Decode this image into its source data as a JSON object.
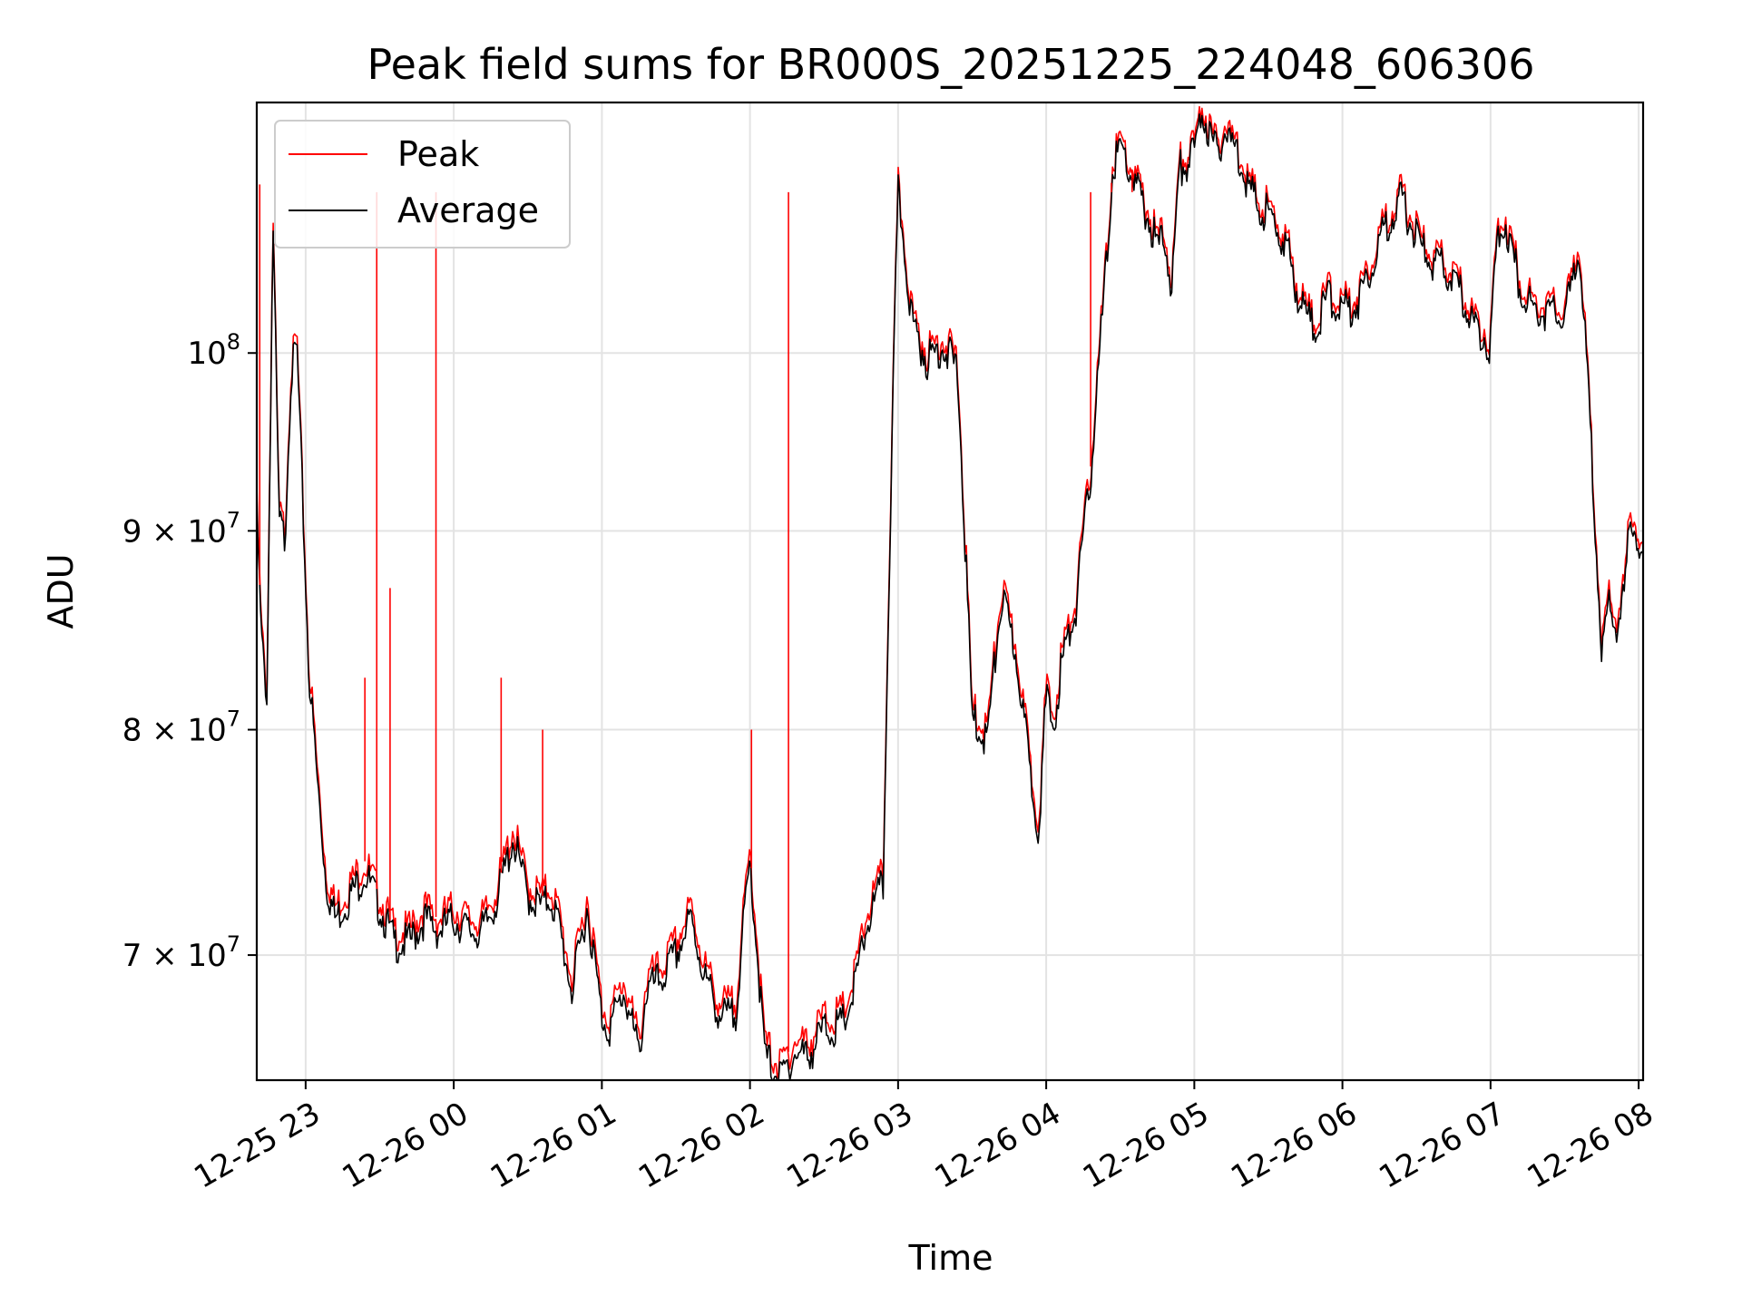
{
  "chart_data": {
    "type": "line",
    "title": "Peak field sums for BR000S_20251225_224048_606306",
    "xlabel": "Time",
    "ylabel": "ADU",
    "yscale": "log",
    "ylim": [
      65000000,
      116000000
    ],
    "x_range_hours": [
      -1.33,
      8.03
    ],
    "grid": true,
    "legend_position": "upper-left",
    "x_ticks": [
      {
        "hour": -1,
        "label": "12-25 23"
      },
      {
        "hour": 0,
        "label": "12-26 00"
      },
      {
        "hour": 1,
        "label": "12-26 01"
      },
      {
        "hour": 2,
        "label": "12-26 02"
      },
      {
        "hour": 3,
        "label": "12-26 03"
      },
      {
        "hour": 4,
        "label": "12-26 04"
      },
      {
        "hour": 5,
        "label": "12-26 05"
      },
      {
        "hour": 6,
        "label": "12-26 06"
      },
      {
        "hour": 7,
        "label": "12-26 07"
      },
      {
        "hour": 8,
        "label": "12-26 08"
      }
    ],
    "y_ticks": [
      {
        "value": 70000000,
        "mantissa": "7",
        "base": "10",
        "exp": "7"
      },
      {
        "value": 80000000,
        "mantissa": "8",
        "base": "10",
        "exp": "7"
      },
      {
        "value": 90000000,
        "mantissa": "9",
        "base": "10",
        "exp": "7"
      },
      {
        "value": 100000000,
        "mantissa": "",
        "base": "10",
        "exp": "8"
      }
    ],
    "series": [
      {
        "name": "Peak",
        "color": "#ff0000",
        "x_hours": [
          -1.33,
          -1.3,
          -1.26,
          -1.22,
          -1.18,
          -1.14,
          -1.1,
          -1.06,
          -1.02,
          -0.98,
          -0.92,
          -0.86,
          -0.8,
          -0.75,
          -0.7,
          -0.6,
          -0.5,
          -0.4,
          -0.3,
          -0.2,
          -0.1,
          0.0,
          0.1,
          0.2,
          0.3,
          0.4,
          0.5,
          0.6,
          0.65,
          0.7,
          0.8,
          0.9,
          1.0,
          1.05,
          1.15,
          1.25,
          1.3,
          1.4,
          1.5,
          1.6,
          1.7,
          1.8,
          1.9,
          2.0,
          2.1,
          2.2,
          2.3,
          2.4,
          2.5,
          2.6,
          2.65,
          2.7,
          2.8,
          2.9,
          3.0,
          3.1,
          3.2,
          3.3,
          3.4,
          3.5,
          3.6,
          3.7,
          3.8,
          3.9,
          3.95,
          4.0,
          4.05,
          4.1,
          4.2,
          4.3,
          4.4,
          4.45,
          4.5,
          4.6,
          4.7,
          4.75,
          4.8,
          4.85,
          4.9,
          5.0,
          5.05,
          5.1,
          5.15,
          5.2,
          5.3,
          5.4,
          5.5,
          5.6,
          5.65,
          5.7,
          5.8,
          5.85,
          5.9,
          6.0,
          6.1,
          6.2,
          6.3,
          6.4,
          6.5,
          6.6,
          6.7,
          6.8,
          6.9,
          7.0,
          7.05,
          7.1,
          7.2,
          7.3,
          7.4,
          7.5,
          7.6,
          7.7,
          7.75,
          7.8,
          7.85,
          7.9,
          7.95,
          8.03
        ],
        "values": [
          91500000,
          85000000,
          82000000,
          108500000,
          91000000,
          90000000,
          99000000,
          101000000,
          92000000,
          83500000,
          78000000,
          73500000,
          72000000,
          72500000,
          73000000,
          74000000,
          72500000,
          71000000,
          71000000,
          72000000,
          71500000,
          72000000,
          71500000,
          71500000,
          73000000,
          75500000,
          73000000,
          72500000,
          73000000,
          72000000,
          69000000,
          72500000,
          68000000,
          67500000,
          69000000,
          66500000,
          69000000,
          69500000,
          70500000,
          72000000,
          69500000,
          68000000,
          68000000,
          74500000,
          66500000,
          65500000,
          66500000,
          66500000,
          67500000,
          67500000,
          68000000,
          69000000,
          72000000,
          73500000,
          110500000,
          102000000,
          100000000,
          101000000,
          99500000,
          81000000,
          80000000,
          87000000,
          84000000,
          78000000,
          76000000,
          82000000,
          80500000,
          83500000,
          86500000,
          93500000,
          105000000,
          112000000,
          113500000,
          111000000,
          108500000,
          107000000,
          107500000,
          104500000,
          112000000,
          113000000,
          116000000,
          114500000,
          113000000,
          114500000,
          113000000,
          110000000,
          109000000,
          107500000,
          106000000,
          104000000,
          102000000,
          102500000,
          104000000,
          103000000,
          103500000,
          106000000,
          108500000,
          110000000,
          107500000,
          106000000,
          105500000,
          104000000,
          102000000,
          101000000,
          108000000,
          108500000,
          104500000,
          103000000,
          103000000,
          102500000,
          107000000,
          92000000,
          84000000,
          86500000,
          85500000,
          87000000,
          91500000,
          88500000
        ]
      },
      {
        "name": "Average",
        "color": "#000000",
        "x_hours": [
          -1.33,
          -1.3,
          -1.26,
          -1.22,
          -1.18,
          -1.14,
          -1.1,
          -1.06,
          -1.02,
          -0.98,
          -0.92,
          -0.86,
          -0.8,
          -0.75,
          -0.7,
          -0.6,
          -0.5,
          -0.4,
          -0.3,
          -0.2,
          -0.1,
          0.0,
          0.1,
          0.2,
          0.3,
          0.4,
          0.5,
          0.6,
          0.65,
          0.7,
          0.8,
          0.9,
          1.0,
          1.05,
          1.15,
          1.25,
          1.3,
          1.4,
          1.5,
          1.6,
          1.7,
          1.8,
          1.9,
          2.0,
          2.1,
          2.2,
          2.3,
          2.4,
          2.5,
          2.6,
          2.65,
          2.7,
          2.8,
          2.9,
          3.0,
          3.1,
          3.2,
          3.3,
          3.4,
          3.5,
          3.6,
          3.7,
          3.8,
          3.9,
          3.95,
          4.0,
          4.05,
          4.1,
          4.2,
          4.3,
          4.4,
          4.45,
          4.5,
          4.6,
          4.7,
          4.75,
          4.8,
          4.85,
          4.9,
          5.0,
          5.05,
          5.1,
          5.15,
          5.2,
          5.3,
          5.4,
          5.5,
          5.6,
          5.65,
          5.7,
          5.8,
          5.85,
          5.9,
          6.0,
          6.1,
          6.2,
          6.3,
          6.4,
          6.5,
          6.6,
          6.7,
          6.8,
          6.9,
          7.0,
          7.05,
          7.1,
          7.2,
          7.3,
          7.4,
          7.5,
          7.6,
          7.7,
          7.75,
          7.8,
          7.85,
          7.9,
          7.95,
          8.03
        ],
        "values": [
          91000000,
          84500000,
          81500000,
          108000000,
          90500000,
          89500000,
          98500000,
          100500000,
          91500000,
          83000000,
          77500000,
          73000000,
          71500000,
          72000000,
          72500000,
          73500000,
          72000000,
          70500000,
          70500000,
          71500000,
          71000000,
          71500000,
          71000000,
          71000000,
          72500000,
          75000000,
          72500000,
          72000000,
          72500000,
          71500000,
          68500000,
          72000000,
          67500000,
          67000000,
          68500000,
          66000000,
          68500000,
          69000000,
          70000000,
          71500000,
          69000000,
          67500000,
          67500000,
          74000000,
          66000000,
          65000000,
          66000000,
          66000000,
          67000000,
          67000000,
          67500000,
          68500000,
          71500000,
          73000000,
          110000000,
          101500000,
          99500000,
          100500000,
          99000000,
          80500000,
          79500000,
          86500000,
          83500000,
          77500000,
          75500000,
          81500000,
          80000000,
          83000000,
          86000000,
          93000000,
          104500000,
          111500000,
          113000000,
          110500000,
          108000000,
          106500000,
          107000000,
          104000000,
          111500000,
          112500000,
          115500000,
          114000000,
          112500000,
          114000000,
          112500000,
          109500000,
          108500000,
          107000000,
          105500000,
          103500000,
          101500000,
          102000000,
          103500000,
          102500000,
          103000000,
          105500000,
          108000000,
          109500000,
          107000000,
          105500000,
          105000000,
          103500000,
          101500000,
          100500000,
          107500000,
          108000000,
          104000000,
          102500000,
          102500000,
          102000000,
          106500000,
          91500000,
          83500000,
          86000000,
          85000000,
          86500000,
          91000000,
          88000000
        ]
      }
    ],
    "peak_spikes": [
      {
        "hour": -1.31,
        "value": 110500000
      },
      {
        "hour": -0.52,
        "value": 110000000
      },
      {
        "hour": -0.12,
        "value": 110000000
      },
      {
        "hour": 2.26,
        "value": 110000000
      },
      {
        "hour": 4.3,
        "value": 110000000
      },
      {
        "hour": 4.44,
        "value": 110000000
      },
      {
        "hour": 4.58,
        "value": 110000000
      },
      {
        "hour": -0.43,
        "value": 87000000
      },
      {
        "hour": -0.6,
        "value": 82500000
      },
      {
        "hour": 0.32,
        "value": 82500000
      },
      {
        "hour": 2.01,
        "value": 80000000
      },
      {
        "hour": 0.6,
        "value": 80000000
      }
    ]
  }
}
